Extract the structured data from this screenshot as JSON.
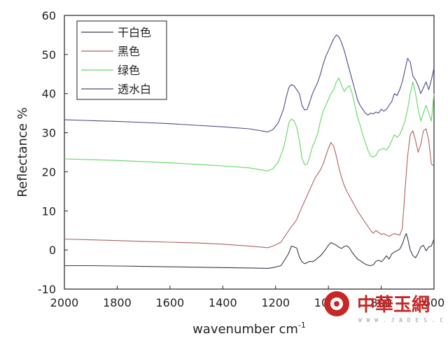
{
  "chart_data": {
    "type": "line",
    "xlabel": "wavenumber cm",
    "xlabel_superscript": "-1",
    "ylabel": "Reflectance %",
    "xlim": [
      2000,
      600
    ],
    "ylim": [
      -10,
      60
    ],
    "x_reversed": true,
    "x_ticks": [
      2000,
      1800,
      1600,
      1400,
      1200,
      1000,
      800,
      600
    ],
    "x_tick_labels": [
      "2000",
      "1800",
      "1600",
      "1400",
      "1200",
      "1000",
      "800",
      "600"
    ],
    "y_ticks": [
      -10,
      0,
      10,
      20,
      30,
      40,
      50,
      60
    ],
    "y_tick_labels": [
      "-10",
      "0",
      "10",
      "20",
      "30",
      "40",
      "50",
      "60"
    ],
    "grid": false,
    "legend_position": "top-left",
    "series": [
      {
        "name": "干白色",
        "color": "#3a3a4a",
        "x": [
          2000,
          1900,
          1800,
          1700,
          1600,
          1500,
          1400,
          1300,
          1230,
          1210,
          1180,
          1165,
          1150,
          1140,
          1130,
          1120,
          1110,
          1100,
          1090,
          1080,
          1070,
          1060,
          1050,
          1040,
          1030,
          1020,
          1010,
          1000,
          990,
          980,
          970,
          960,
          950,
          940,
          930,
          920,
          910,
          900,
          890,
          880,
          870,
          860,
          850,
          840,
          830,
          820,
          810,
          800,
          790,
          780,
          770,
          760,
          750,
          740,
          730,
          720,
          710,
          705,
          700,
          690,
          680,
          670,
          660,
          650,
          640,
          630,
          620,
          610,
          600
        ],
        "y": [
          -4,
          -4,
          -4.1,
          -4.2,
          -4.3,
          -4.4,
          -4.5,
          -4.6,
          -4.7,
          -4.5,
          -4,
          -2.5,
          -0.8,
          1.0,
          0.8,
          0.5,
          -1.8,
          -3.0,
          -3.5,
          -3.2,
          -2.9,
          -3.0,
          -2.6,
          -2.0,
          -1.5,
          -0.7,
          0.2,
          1.2,
          1.9,
          1.6,
          1.2,
          0.7,
          0.4,
          0.9,
          1.1,
          0.5,
          -0.6,
          -1.5,
          -2.3,
          -2.7,
          -3.2,
          -3.6,
          -3.9,
          -4.0,
          -3.8,
          -2.9,
          -2.6,
          -3.0,
          -2.4,
          -1.5,
          -2.3,
          -1.0,
          -0.5,
          -0.2,
          0.2,
          1.5,
          3.5,
          4.2,
          3.0,
          0.0,
          -1.4,
          -2.0,
          -0.8,
          0.8,
          1.2,
          -0.2,
          0.8,
          1.0,
          2.8
        ]
      },
      {
        "name": "黑色",
        "color": "#b06060",
        "x": [
          2000,
          1900,
          1800,
          1700,
          1600,
          1500,
          1400,
          1300,
          1230,
          1210,
          1180,
          1165,
          1150,
          1140,
          1130,
          1120,
          1110,
          1100,
          1090,
          1080,
          1070,
          1060,
          1050,
          1040,
          1030,
          1020,
          1010,
          1000,
          990,
          980,
          970,
          960,
          950,
          940,
          930,
          920,
          910,
          900,
          890,
          880,
          870,
          860,
          850,
          840,
          830,
          820,
          810,
          800,
          790,
          780,
          770,
          760,
          750,
          740,
          730,
          720,
          710,
          700,
          690,
          680,
          670,
          660,
          650,
          640,
          630,
          620,
          610,
          600
        ],
        "y": [
          2.8,
          2.6,
          2.4,
          2.2,
          2.0,
          1.8,
          1.5,
          1.0,
          0.6,
          1.0,
          2.0,
          3.5,
          5.0,
          6.0,
          6.8,
          7.8,
          9.5,
          11.0,
          12.5,
          14.0,
          15.5,
          17.0,
          18.5,
          19.5,
          20.5,
          22.0,
          24.0,
          26.0,
          27.5,
          26.5,
          24.0,
          21.0,
          18.5,
          16.5,
          15.0,
          13.8,
          12.5,
          11.3,
          10.0,
          9.0,
          8.0,
          7.0,
          6.0,
          5.0,
          4.3,
          5.0,
          4.5,
          4.0,
          4.2,
          3.8,
          3.5,
          3.9,
          4.2,
          4.0,
          3.8,
          5.5,
          15.0,
          24.0,
          29.5,
          30.5,
          28.0,
          25.0,
          27.0,
          30.5,
          31.0,
          28.0,
          22.0,
          21.5
        ]
      },
      {
        "name": "绿色",
        "color": "#5fd85f",
        "x": [
          2000,
          1900,
          1800,
          1700,
          1600,
          1500,
          1400,
          1300,
          1230,
          1210,
          1190,
          1170,
          1160,
          1150,
          1140,
          1130,
          1120,
          1110,
          1100,
          1090,
          1080,
          1070,
          1060,
          1050,
          1040,
          1030,
          1020,
          1010,
          1000,
          990,
          980,
          970,
          960,
          950,
          940,
          930,
          920,
          910,
          900,
          890,
          880,
          870,
          860,
          850,
          840,
          830,
          820,
          810,
          800,
          790,
          780,
          770,
          760,
          750,
          740,
          730,
          720,
          710,
          700,
          690,
          680,
          670,
          660,
          650,
          640,
          630,
          620,
          610,
          600
        ],
        "y": [
          23.3,
          23.1,
          22.9,
          22.6,
          22.3,
          21.9,
          21.5,
          21.0,
          20.2,
          20.8,
          22.5,
          26.0,
          29.0,
          32.5,
          33.5,
          33.0,
          31.5,
          28.0,
          23.5,
          21.8,
          22.0,
          24.0,
          26.5,
          28.0,
          30.0,
          33.0,
          35.5,
          37.0,
          38.5,
          40.0,
          41.0,
          43.0,
          44.0,
          42.0,
          40.5,
          41.5,
          42.0,
          40.0,
          37.0,
          34.0,
          32.0,
          29.5,
          27.5,
          25.5,
          24.0,
          23.8,
          24.2,
          25.5,
          25.8,
          26.0,
          25.5,
          26.5,
          28.0,
          29.5,
          28.8,
          29.5,
          31.0,
          33.0,
          36.0,
          40.0,
          43.0,
          40.0,
          36.0,
          33.0,
          35.0,
          37.0,
          35.0,
          33.0,
          40.0
        ]
      },
      {
        "name": "透水白",
        "color": "#4a4a88",
        "x": [
          2000,
          1900,
          1800,
          1700,
          1600,
          1500,
          1400,
          1300,
          1230,
          1210,
          1190,
          1170,
          1160,
          1150,
          1140,
          1130,
          1120,
          1110,
          1100,
          1090,
          1080,
          1070,
          1060,
          1050,
          1040,
          1030,
          1020,
          1010,
          1000,
          990,
          980,
          970,
          960,
          950,
          940,
          930,
          920,
          910,
          900,
          890,
          880,
          870,
          860,
          850,
          840,
          830,
          820,
          810,
          800,
          790,
          780,
          770,
          760,
          750,
          740,
          730,
          720,
          710,
          700,
          690,
          680,
          670,
          660,
          650,
          640,
          630,
          620,
          610,
          600
        ],
        "y": [
          33.3,
          33.1,
          32.9,
          32.6,
          32.3,
          31.9,
          31.5,
          31.0,
          30.2,
          30.8,
          32.5,
          36.0,
          39.0,
          41.5,
          42.3,
          42.0,
          41.0,
          40.0,
          37.0,
          35.8,
          36.0,
          38.0,
          40.0,
          41.5,
          43.0,
          45.0,
          47.5,
          49.5,
          51.0,
          52.5,
          54.0,
          55.0,
          54.5,
          53.0,
          51.0,
          48.5,
          46.0,
          43.5,
          41.0,
          38.5,
          37.0,
          36.0,
          35.0,
          34.5,
          35.0,
          34.8,
          35.3,
          35.0,
          36.0,
          35.5,
          36.0,
          37.0,
          38.0,
          40.0,
          39.5,
          41.0,
          43.0,
          46.0,
          49.0,
          48.0,
          44.5,
          43.5,
          42.0,
          40.0,
          41.5,
          43.0,
          41.0,
          43.5,
          46.5
        ]
      }
    ]
  },
  "watermark": {
    "main_text": "中華玉網",
    "sub_text": "W W W . J A D E S . C N"
  }
}
